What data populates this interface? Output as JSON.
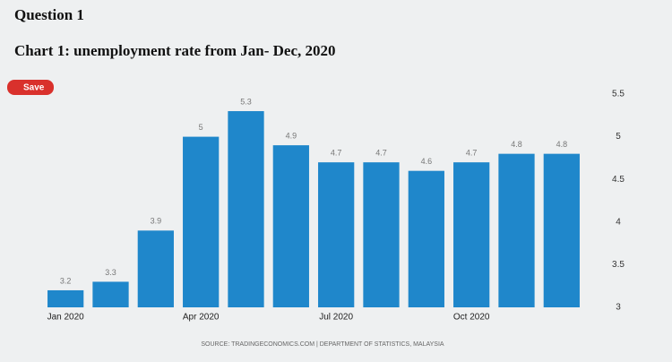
{
  "header": {
    "question": "Question 1",
    "title": "Chart 1: unemployment rate from Jan- Dec, 2020"
  },
  "chart_data": {
    "type": "bar",
    "button": "Save",
    "categories": [
      "Jan 2020",
      null,
      null,
      "Apr 2020",
      null,
      null,
      "Jul 2020",
      null,
      null,
      "Oct 2020",
      null,
      null
    ],
    "values": [
      3.2,
      3.3,
      3.9,
      5,
      5.3,
      4.9,
      4.7,
      4.7,
      4.6,
      4.7,
      4.8,
      4.8
    ],
    "color": "#1f87cb",
    "ylim": [
      3,
      5.5
    ],
    "yticks": [
      3,
      3.5,
      4,
      4.5,
      5,
      5.5
    ],
    "source": "SOURCE: TRADINGECONOMICS.COM | DEPARTMENT OF STATISTICS, MALAYSIA"
  }
}
